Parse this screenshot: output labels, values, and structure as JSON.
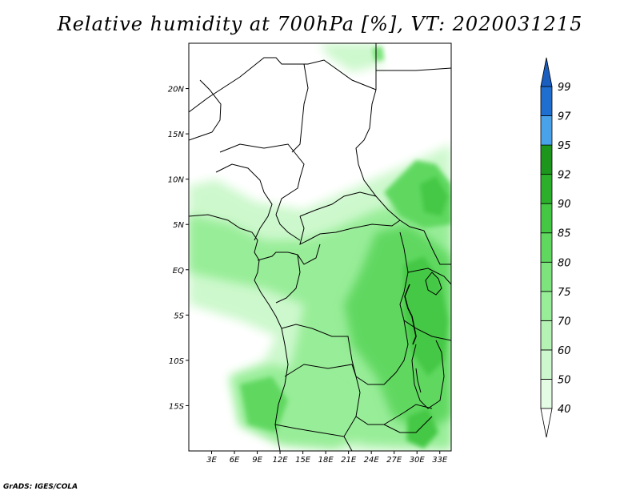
{
  "title": "Relative humidity at 700hPa [%], VT: 2020031215",
  "credit": "GrADS: IGES/COLA",
  "map": {
    "lon_range": [
      0,
      34.5
    ],
    "lat_range": [
      -20,
      25
    ],
    "lat_ticks": [
      {
        "value": 20,
        "label": "20N"
      },
      {
        "value": 15,
        "label": "15N"
      },
      {
        "value": 10,
        "label": "10N"
      },
      {
        "value": 5,
        "label": "5N"
      },
      {
        "value": 0,
        "label": "EQ"
      },
      {
        "value": -5,
        "label": "5S"
      },
      {
        "value": -10,
        "label": "10S"
      },
      {
        "value": -15,
        "label": "15S"
      }
    ],
    "lon_ticks": [
      {
        "value": 3,
        "label": "3E"
      },
      {
        "value": 6,
        "label": "6E"
      },
      {
        "value": 9,
        "label": "9E"
      },
      {
        "value": 12,
        "label": "12E"
      },
      {
        "value": 15,
        "label": "15E"
      },
      {
        "value": 18,
        "label": "18E"
      },
      {
        "value": 21,
        "label": "21E"
      },
      {
        "value": 24,
        "label": "24E"
      },
      {
        "value": 27,
        "label": "27E"
      },
      {
        "value": 30,
        "label": "30E"
      },
      {
        "value": 33,
        "label": "33E"
      }
    ]
  },
  "colorbar": {
    "levels": [
      {
        "label": "40",
        "color": "#ffffff"
      },
      {
        "label": "50",
        "color": "#e4fce4"
      },
      {
        "label": "60",
        "color": "#cdf8cd"
      },
      {
        "label": "70",
        "color": "#b5f3b5"
      },
      {
        "label": "75",
        "color": "#98ed98"
      },
      {
        "label": "80",
        "color": "#7de47d"
      },
      {
        "label": "85",
        "color": "#60d860"
      },
      {
        "label": "90",
        "color": "#44c844"
      },
      {
        "label": "92",
        "color": "#2cb02c"
      },
      {
        "label": "95",
        "color": "#1c961c"
      },
      {
        "label": "97",
        "color": "#4aa3e8"
      },
      {
        "label": "99",
        "color": "#1e6fd0"
      }
    ],
    "bottom_cap_color": "#ffffff",
    "top_cap_color": "#1a5fbf"
  }
}
